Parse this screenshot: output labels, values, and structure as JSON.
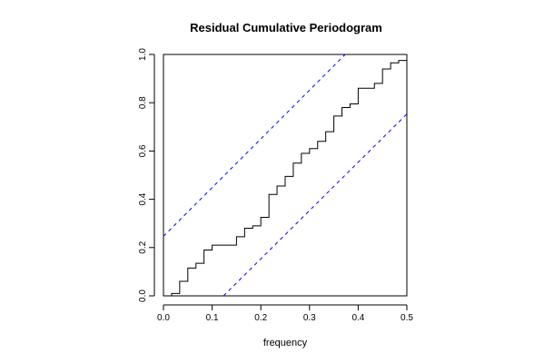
{
  "chart_data": {
    "type": "line",
    "title": "Residual Cumulative Periodogram",
    "xlabel": "frequency",
    "ylabel": "",
    "xlim": [
      0,
      0.5
    ],
    "ylim": [
      0,
      1
    ],
    "grid": false,
    "x_ticks": [
      "0.0",
      "0.1",
      "0.2",
      "0.3",
      "0.4",
      "0.5"
    ],
    "y_ticks": [
      "0.0",
      "0.2",
      "0.4",
      "0.6",
      "0.8",
      "1.0"
    ],
    "series": [
      {
        "style": "step",
        "color": "#000000",
        "x": [
          0.0,
          0.0167,
          0.0333,
          0.05,
          0.0667,
          0.0833,
          0.1,
          0.1167,
          0.1333,
          0.15,
          0.1667,
          0.1833,
          0.2,
          0.2167,
          0.2333,
          0.25,
          0.2667,
          0.2833,
          0.3,
          0.3167,
          0.3333,
          0.35,
          0.3667,
          0.3833,
          0.4,
          0.4167,
          0.4333,
          0.45,
          0.4667,
          0.4833,
          0.5
        ],
        "y": [
          0.0,
          0.01,
          0.06,
          0.115,
          0.135,
          0.19,
          0.21,
          0.21,
          0.21,
          0.245,
          0.28,
          0.29,
          0.325,
          0.42,
          0.455,
          0.495,
          0.55,
          0.59,
          0.61,
          0.64,
          0.68,
          0.745,
          0.78,
          0.795,
          0.86,
          0.86,
          0.88,
          0.94,
          0.965,
          0.975,
          1.0
        ]
      },
      {
        "style": "dashed",
        "color": "#0000ff",
        "x": [
          0.0,
          0.3733
        ],
        "y": [
          0.2467,
          1.0
        ]
      },
      {
        "style": "dashed",
        "color": "#0000ff",
        "x": [
          0.1233,
          0.5
        ],
        "y": [
          0.0,
          0.7533
        ]
      }
    ]
  }
}
